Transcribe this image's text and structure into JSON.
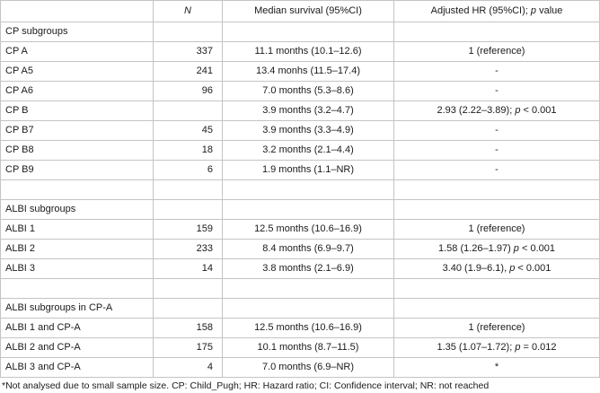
{
  "table": {
    "headers": {
      "label": "",
      "n": "N",
      "median": "Median survival (95%CI)",
      "hr_main": "Adjusted HR (95%CI); ",
      "hr_p": "p",
      "hr_tail": " value"
    },
    "sections": [
      {
        "title": "CP subgroups",
        "rows": [
          {
            "label": "CP A",
            "n": "337",
            "median": "11.1 months (10.1–12.6)",
            "hr": "1 (reference)",
            "p_eq": "",
            "p_val": ""
          },
          {
            "label": "CP A5",
            "n": "241",
            "median": "13.4 monhs (11.5–17.4)",
            "hr": "-",
            "p_eq": "",
            "p_val": ""
          },
          {
            "label": "CP A6",
            "n": "96",
            "median": "7.0 months (5.3–8.6)",
            "hr": "-",
            "p_eq": "",
            "p_val": ""
          },
          {
            "label": "CP B",
            "n": "",
            "median": "3.9 months (3.2–4.7)",
            "hr": "2.93 (2.22–3.89); ",
            "p_eq": "p",
            "p_val": " < 0.001"
          },
          {
            "label": "CP B7",
            "n": "45",
            "median": "3.9 months (3.3–4.9)",
            "hr": "-",
            "p_eq": "",
            "p_val": ""
          },
          {
            "label": "CP B8",
            "n": "18",
            "median": "3.2 months (2.1–4.4)",
            "hr": "-",
            "p_eq": "",
            "p_val": ""
          },
          {
            "label": "CP B9",
            "n": "6",
            "median": "1.9 months (1.1–NR)",
            "hr": "-",
            "p_eq": "",
            "p_val": ""
          }
        ]
      },
      {
        "title": "ALBI subgroups",
        "rows": [
          {
            "label": "ALBI 1",
            "n": "159",
            "median": "12.5 months (10.6–16.9)",
            "hr": "1 (reference)",
            "p_eq": "",
            "p_val": ""
          },
          {
            "label": "ALBI 2",
            "n": "233",
            "median": "8.4 months (6.9–9.7)",
            "hr": "1.58 (1.26–1.97) ",
            "p_eq": "p",
            "p_val": " < 0.001"
          },
          {
            "label": "ALBI 3",
            "n": "14",
            "median": "3.8 months (2.1–6.9)",
            "hr": "3.40 (1.9–6.1), ",
            "p_eq": "p",
            "p_val": " < 0.001"
          }
        ]
      },
      {
        "title": "ALBI subgroups in CP-A",
        "rows": [
          {
            "label": "ALBI 1 and CP-A",
            "n": "158",
            "median": "12.5 months (10.6–16.9)",
            "hr": "1 (reference)",
            "p_eq": "",
            "p_val": ""
          },
          {
            "label": "ALBI 2 and CP-A",
            "n": "175",
            "median": "10.1 months (8.7–11.5)",
            "hr": "1.35 (1.07–1.72); ",
            "p_eq": "p",
            "p_val": " = 0.012"
          },
          {
            "label": "ALBI 3 and CP-A",
            "n": "4",
            "median": "7.0 months (6.9–NR)",
            "hr": "*",
            "p_eq": "",
            "p_val": ""
          }
        ]
      }
    ]
  },
  "footnote": "*Not analysed due to small sample size. CP: Child_Pugh; HR: Hazard ratio; CI: Confidence interval; NR: not reached"
}
